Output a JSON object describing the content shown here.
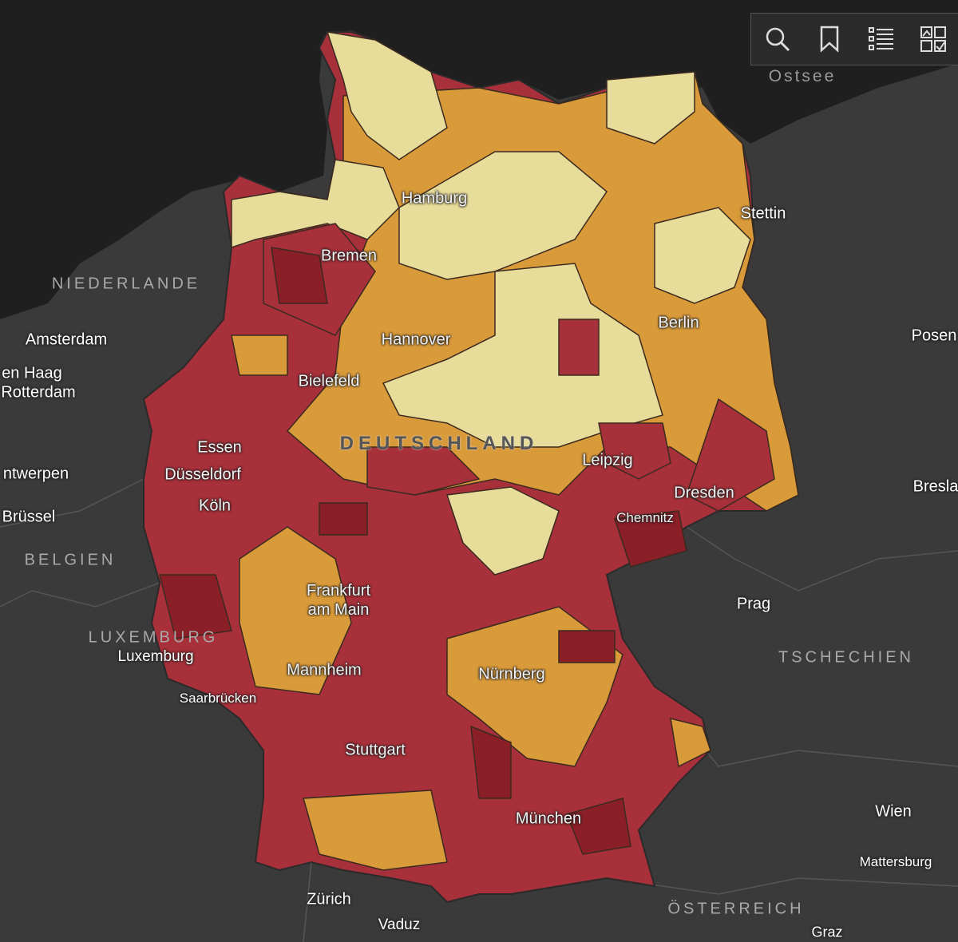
{
  "water_labels": [
    "Ostsee"
  ],
  "country_labels": [
    "NIEDERLANDE",
    "BELGIEN",
    "LUXEMBURG",
    "TSCHECHIEN",
    "ÖSTERREICH",
    "DEUTSCHLAND"
  ],
  "city_labels": [
    "Hamburg",
    "Stettin",
    "Bremen",
    "Amsterdam",
    "en Haag",
    "Rotterdam",
    "Berlin",
    "Posen",
    "Hannover",
    "Bielefeld",
    "Leipzig",
    "Essen",
    "Düsseldorf",
    "ntwerpen",
    "Dresden",
    "Bresla",
    "Brüssel",
    "Köln",
    "Chemnitz",
    "Prag",
    "Frankfurt am Main",
    "Luxemburg",
    "Mannheim",
    "Nürnberg",
    "Saarbrücken",
    "Stuttgart",
    "München",
    "Wien",
    "Mattersburg",
    "Zürich",
    "Vaduz",
    "Graz"
  ]
}
